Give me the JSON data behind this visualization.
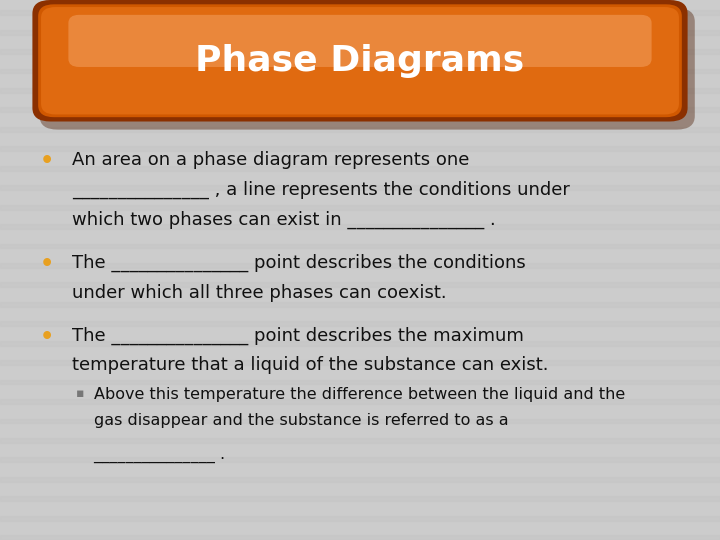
{
  "title": "Phase Diagrams",
  "background_color": "#cccccc",
  "stripe_color": "#bebebe",
  "title_color": "#ffffff",
  "bullet_color": "#e8a020",
  "text_color": "#111111",
  "sub_bullet_color": "#777777",
  "bullet1_line1": "An area on a phase diagram represents one",
  "bullet1_line2": "_______________ , a line represents the conditions under",
  "bullet1_line3": "which two phases can exist in _______________ .",
  "bullet2_line1": "The _______________ point describes the conditions",
  "bullet2_line2": "under which all three phases can coexist.",
  "bullet3_line1": "The _______________ point describes the maximum",
  "bullet3_line2": "temperature that a liquid of the substance can exist.",
  "sub_line1": "Above this temperature the difference between the liquid and the",
  "sub_line2": "gas disappear and the substance is referred to as a",
  "sub_line3": "_______________ ."
}
